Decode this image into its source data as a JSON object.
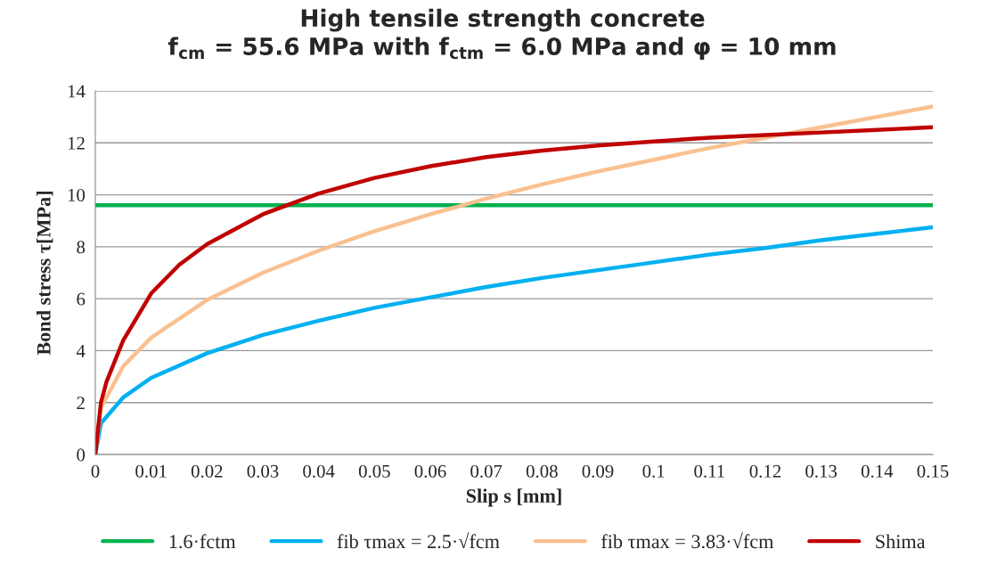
{
  "chart_data": {
    "type": "line",
    "title": "High tensile strength concrete\nf$_{cm}$ = 55.6 MPa with f$_{ctm}$ = 6.0 MPa and φ = 10 mm",
    "xlabel": "Slip s [mm]",
    "ylabel": "Bond stress τ[MPa]",
    "series": [
      {
        "name": "1.6·fctm",
        "color": "#00b050",
        "x": [
          0,
          0.15
        ],
        "values": [
          9.6,
          9.6
        ]
      },
      {
        "name": "fib τmax = 2.5·√fcm",
        "color": "#00b0f0",
        "x": [
          0,
          0.001,
          0.005,
          0.01,
          0.02,
          0.03,
          0.04,
          0.05,
          0.06,
          0.07,
          0.08,
          0.09,
          0.1,
          0.11,
          0.12,
          0.13,
          0.14,
          0.15
        ],
        "values": [
          0,
          1.2,
          2.2,
          2.95,
          3.9,
          4.6,
          5.15,
          5.65,
          6.05,
          6.45,
          6.8,
          7.1,
          7.4,
          7.7,
          7.95,
          8.25,
          8.5,
          8.75
        ]
      },
      {
        "name": "fib τmax = 3.83·√fcm",
        "color": "#fac090",
        "x": [
          0,
          0.001,
          0.005,
          0.01,
          0.02,
          0.03,
          0.04,
          0.05,
          0.06,
          0.07,
          0.08,
          0.09,
          0.1,
          0.11,
          0.12,
          0.13,
          0.14,
          0.15
        ],
        "values": [
          0,
          1.8,
          3.4,
          4.5,
          5.95,
          7.0,
          7.85,
          8.6,
          9.25,
          9.85,
          10.4,
          10.9,
          11.35,
          11.8,
          12.2,
          12.6,
          13.0,
          13.4
        ]
      },
      {
        "name": "Shima",
        "color": "#c00000",
        "x": [
          0,
          0.001,
          0.002,
          0.005,
          0.01,
          0.015,
          0.02,
          0.03,
          0.04,
          0.05,
          0.06,
          0.07,
          0.08,
          0.09,
          0.1,
          0.11,
          0.12,
          0.13,
          0.14,
          0.15
        ],
        "values": [
          0,
          2.0,
          2.8,
          4.4,
          6.2,
          7.3,
          8.1,
          9.25,
          10.05,
          10.65,
          11.1,
          11.45,
          11.7,
          11.9,
          12.05,
          12.2,
          12.3,
          12.4,
          12.5,
          12.6
        ]
      }
    ],
    "xlim": [
      0,
      0.15
    ],
    "xticks": [
      0,
      0.01,
      0.02,
      0.03,
      0.04,
      0.05,
      0.06,
      0.07,
      0.08,
      0.09,
      0.1,
      0.11,
      0.12,
      0.13,
      0.14,
      0.15
    ],
    "ylim": [
      0,
      14
    ],
    "yticks": [
      0,
      2,
      4,
      6,
      8,
      10,
      12,
      14
    ],
    "grid": "y",
    "legend": "bottom",
    "marker": "none",
    "line_style": "solid"
  }
}
